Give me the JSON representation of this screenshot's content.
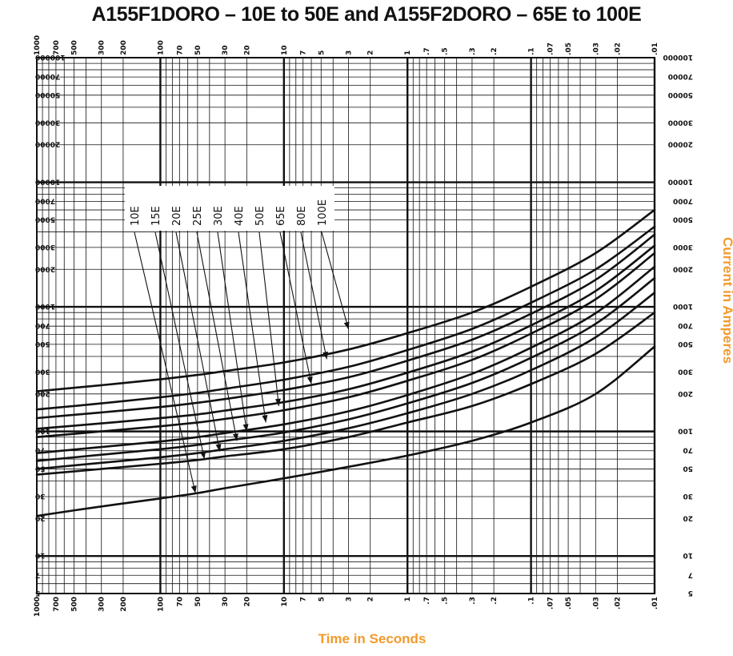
{
  "accent_color": "#f39a2b",
  "chart_data": {
    "type": "line",
    "title": "A155F1DORO – 10E to 50E  and  A155F2DORO – 65E to 100E",
    "xlabel": "Time in Seconds",
    "ylabel": "Current in Amperes",
    "x_scale": "log",
    "y_scale": "log",
    "xlim": [
      1000,
      0.01
    ],
    "ylim": [
      5,
      100000
    ],
    "grid": true,
    "x_tick_labels": [
      {
        "value": 1000,
        "label": "1000"
      },
      {
        "value": 700,
        "label": "700"
      },
      {
        "value": 500,
        "label": "500"
      },
      {
        "value": 300,
        "label": "300"
      },
      {
        "value": 200,
        "label": "200"
      },
      {
        "value": 100,
        "label": "100"
      },
      {
        "value": 70,
        "label": "70"
      },
      {
        "value": 50,
        "label": "50"
      },
      {
        "value": 30,
        "label": "30"
      },
      {
        "value": 20,
        "label": "20"
      },
      {
        "value": 10,
        "label": "10"
      },
      {
        "value": 7,
        "label": "7"
      },
      {
        "value": 5,
        "label": "5"
      },
      {
        "value": 3,
        "label": "3"
      },
      {
        "value": 2,
        "label": "2"
      },
      {
        "value": 1,
        "label": "1"
      },
      {
        "value": 0.7,
        "label": ".7"
      },
      {
        "value": 0.5,
        "label": ".5"
      },
      {
        "value": 0.3,
        "label": ".3"
      },
      {
        "value": 0.2,
        "label": ".2"
      },
      {
        "value": 0.1,
        "label": ".1"
      },
      {
        "value": 0.07,
        "label": ".07"
      },
      {
        "value": 0.05,
        "label": ".05"
      },
      {
        "value": 0.03,
        "label": ".03"
      },
      {
        "value": 0.02,
        "label": ".02"
      },
      {
        "value": 0.01,
        "label": ".01"
      }
    ],
    "y_tick_labels": [
      {
        "value": 100000,
        "label": "100000"
      },
      {
        "value": 70000,
        "label": "70000"
      },
      {
        "value": 50000,
        "label": "50000"
      },
      {
        "value": 30000,
        "label": "30000"
      },
      {
        "value": 20000,
        "label": "20000"
      },
      {
        "value": 10000,
        "label": "10000"
      },
      {
        "value": 7000,
        "label": "7000"
      },
      {
        "value": 5000,
        "label": "5000"
      },
      {
        "value": 3000,
        "label": "3000"
      },
      {
        "value": 2000,
        "label": "2000"
      },
      {
        "value": 1000,
        "label": "1000"
      },
      {
        "value": 700,
        "label": "700"
      },
      {
        "value": 500,
        "label": "500"
      },
      {
        "value": 300,
        "label": "300"
      },
      {
        "value": 200,
        "label": "200"
      },
      {
        "value": 100,
        "label": "100"
      },
      {
        "value": 70,
        "label": "70"
      },
      {
        "value": 50,
        "label": "50"
      },
      {
        "value": 30,
        "label": "30"
      },
      {
        "value": 20,
        "label": "20"
      },
      {
        "value": 10,
        "label": "10"
      },
      {
        "value": 7,
        "label": "7"
      },
      {
        "value": 5,
        "label": "5"
      }
    ],
    "series": [
      {
        "name": "10E",
        "x": [
          1000,
          300,
          100,
          50,
          30,
          10,
          3,
          1,
          0.3,
          0.1,
          0.03,
          0.01
        ],
        "y": [
          21,
          25,
          29,
          32,
          35,
          42,
          52,
          64,
          84,
          118,
          200,
          480
        ],
        "marker": {
          "x": 52,
          "y": 32
        }
      },
      {
        "name": "15E",
        "x": [
          1000,
          300,
          100,
          50,
          30,
          10,
          3,
          1,
          0.3,
          0.1,
          0.03,
          0.01
        ],
        "y": [
          45,
          50,
          55,
          59,
          63,
          72,
          90,
          118,
          160,
          240,
          420,
          900
        ],
        "marker": {
          "x": 44,
          "y": 60
        }
      },
      {
        "name": "20E",
        "x": [
          1000,
          300,
          100,
          50,
          30,
          10,
          3,
          1,
          0.3,
          0.1,
          0.03,
          0.01
        ],
        "y": [
          50,
          56,
          62,
          67,
          72,
          84,
          106,
          140,
          200,
          310,
          570,
          1300
        ],
        "marker": {
          "x": 33,
          "y": 69
        }
      },
      {
        "name": "25E",
        "x": [
          1000,
          300,
          100,
          50,
          30,
          10,
          3,
          1,
          0.3,
          0.1,
          0.03,
          0.01
        ],
        "y": [
          58,
          65,
          72,
          78,
          84,
          98,
          125,
          168,
          245,
          390,
          730,
          1700
        ],
        "marker": {
          "x": 24,
          "y": 84
        }
      },
      {
        "name": "30E",
        "x": [
          1000,
          300,
          100,
          50,
          30,
          10,
          3,
          1,
          0.3,
          0.1,
          0.03,
          0.01
        ],
        "y": [
          67,
          75,
          83,
          90,
          97,
          114,
          145,
          196,
          290,
          470,
          890,
          2100
        ],
        "marker": {
          "x": 20,
          "y": 100
        }
      },
      {
        "name": "40E",
        "x": [
          1000,
          300,
          100,
          50,
          30,
          10,
          3,
          1,
          0.3,
          0.1,
          0.03,
          0.01
        ],
        "y": [
          90,
          100,
          110,
          118,
          126,
          148,
          188,
          255,
          375,
          610,
          1150,
          2700
        ],
        "marker": {
          "x": 14,
          "y": 118
        }
      },
      {
        "name": "50E",
        "x": [
          1000,
          300,
          100,
          50,
          30,
          10,
          3,
          1,
          0.3,
          0.1,
          0.03,
          0.01
        ],
        "y": [
          105,
          116,
          128,
          137,
          147,
          172,
          218,
          296,
          437,
          710,
          1340,
          3100
        ],
        "marker": {
          "x": 11,
          "y": 160
        }
      },
      {
        "name": "65E",
        "x": [
          1000,
          300,
          100,
          50,
          30,
          10,
          3,
          1,
          0.3,
          0.1,
          0.03,
          0.01
        ],
        "y": [
          128,
          142,
          157,
          170,
          182,
          215,
          272,
          370,
          545,
          880,
          1650,
          3800
        ],
        "marker": {
          "x": 6,
          "y": 240
        }
      },
      {
        "name": "80E",
        "x": [
          1000,
          300,
          100,
          50,
          30,
          10,
          3,
          1,
          0.3,
          0.1,
          0.03,
          0.01
        ],
        "y": [
          150,
          168,
          188,
          204,
          220,
          260,
          330,
          450,
          665,
          1080,
          2000,
          4400
        ],
        "marker": {
          "x": 4.5,
          "y": 380
        }
      },
      {
        "name": "100E",
        "x": [
          1000,
          300,
          100,
          50,
          30,
          10,
          3,
          1,
          0.3,
          0.1,
          0.03,
          0.01
        ],
        "y": [
          210,
          235,
          262,
          284,
          305,
          358,
          455,
          615,
          900,
          1450,
          2700,
          6000
        ],
        "marker": {
          "x": 3,
          "y": 660
        }
      }
    ]
  }
}
